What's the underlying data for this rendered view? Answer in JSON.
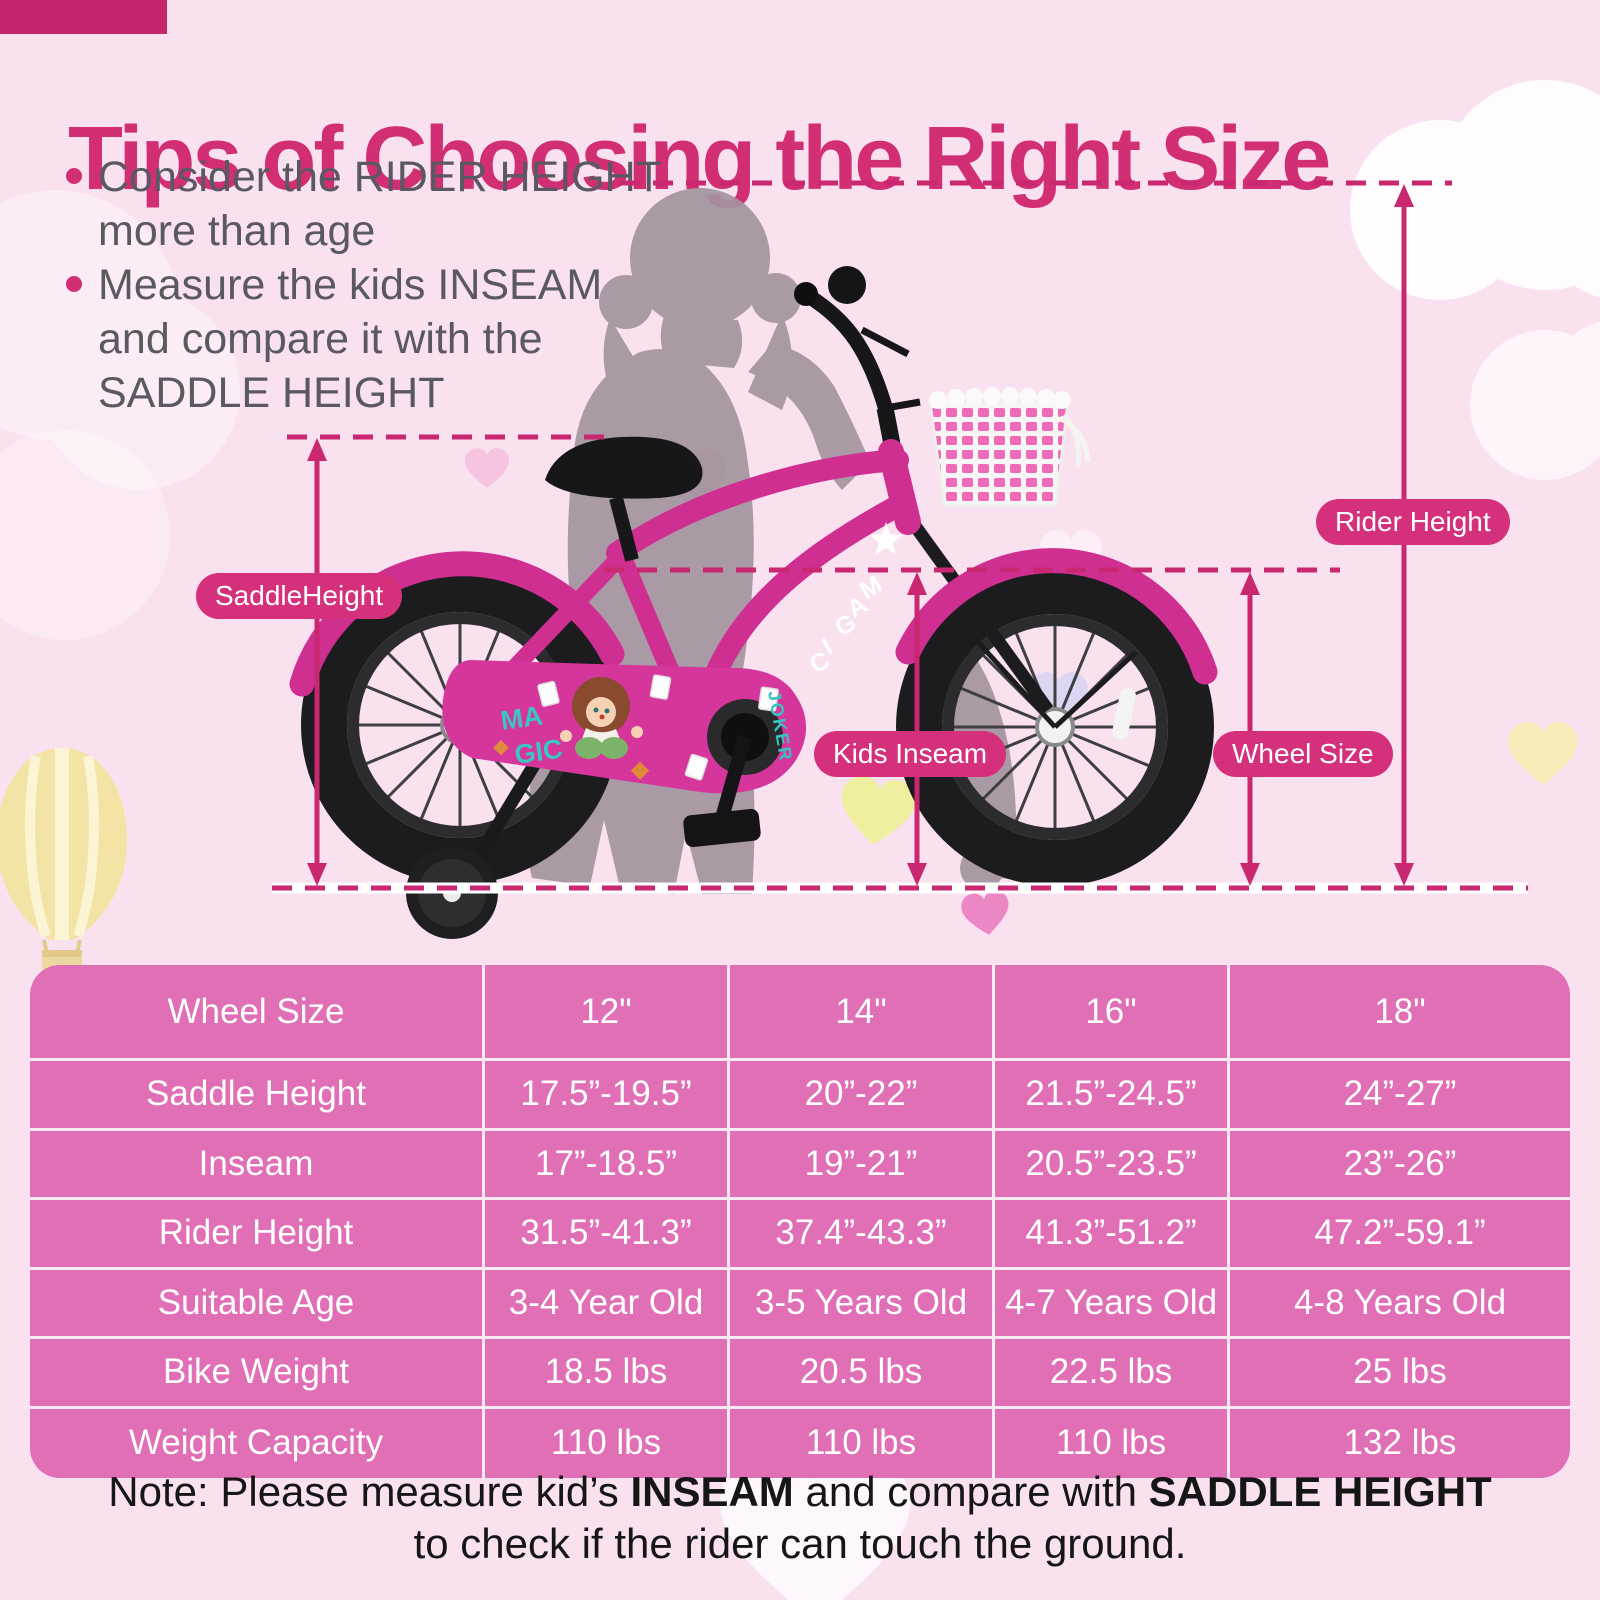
{
  "header": {
    "title": "Tips of Choosing the Right Size",
    "bullets": [
      {
        "lines": [
          "Consider the RIDER HEIGHT",
          "more than age"
        ]
      },
      {
        "lines": [
          "Measure the kids INSEAM",
          "and compare it with the",
          "SADDLE HEIGHT"
        ]
      }
    ]
  },
  "diagram": {
    "labels": {
      "saddle_height": "SaddleHeight",
      "rider_height": "Rider Height",
      "kids_inseam": "Kids Inseam",
      "wheel_size": "Wheel Size"
    },
    "bike_text": {
      "frame": "MAGIC",
      "guard_magic_line1": "MA",
      "guard_magic_line2": "GIC",
      "guard_joker": "JOKER"
    }
  },
  "table": {
    "columns": [
      "Wheel Size",
      "12\"",
      "14\"",
      "16\"",
      "18\""
    ],
    "rows": [
      [
        "Saddle Height",
        "17.5”-19.5”",
        "20”-22”",
        "21.5”-24.5”",
        "24”-27”"
      ],
      [
        "Inseam",
        "17”-18.5”",
        "19”-21”",
        "20.5”-23.5”",
        "23”-26”"
      ],
      [
        "Rider Height",
        "31.5”-41.3”",
        "37.4”-43.3”",
        "41.3”-51.2”",
        "47.2”-59.1”"
      ],
      [
        "Suitable Age",
        "3-4 Year Old",
        "3-5 Years Old",
        "4-7 Years Old",
        "4-8 Years Old"
      ],
      [
        "Bike Weight",
        "18.5 lbs",
        "20.5 lbs",
        "22.5 lbs",
        "25 lbs"
      ],
      [
        "Weight Capacity",
        "110 lbs",
        "110 lbs",
        "110 lbs",
        "132 lbs"
      ]
    ]
  },
  "note": {
    "prefix": "Note: Please measure kid’s ",
    "inseam_bold": "INSEAM",
    "middle": " and compare with ",
    "saddle_bold": "SADDLE HEIGHT",
    "line2": "to check if the rider can touch the ground."
  },
  "colors": {
    "background": "#f9e1f0",
    "accent_magenta": "#d22e73",
    "pill_magenta": "#d4307b",
    "top_bar": "#c5256b",
    "table_background": "#e06fb6",
    "table_text": "#ffffff",
    "bike_frame_pink": "#d02f92",
    "measure_line": "#c9276f"
  }
}
